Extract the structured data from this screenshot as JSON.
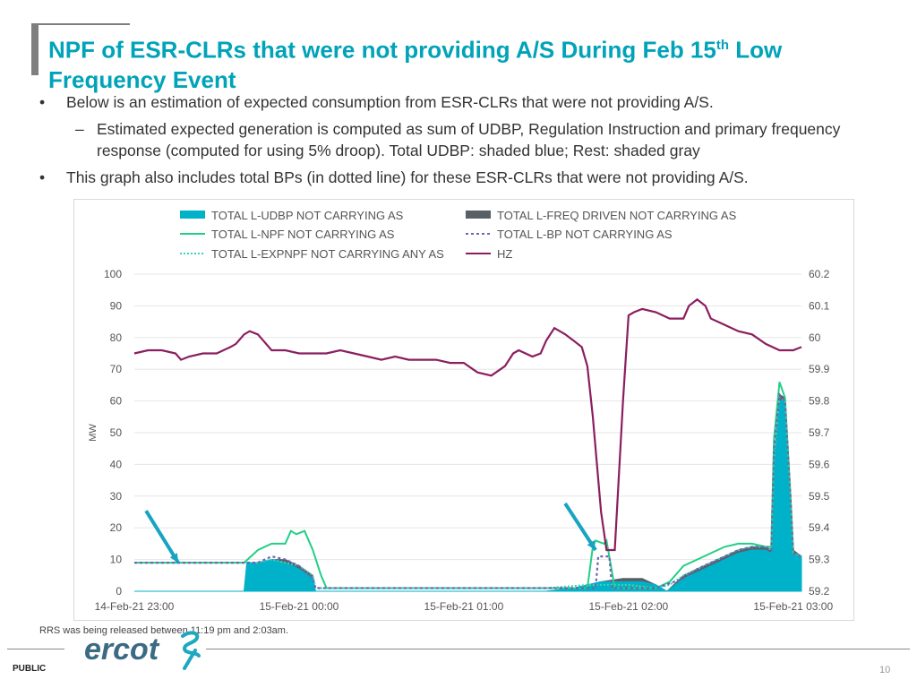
{
  "slide": {
    "title_main": "NPF of ESR-CLRs that were not providing A/S During Feb 15",
    "title_sup": "th",
    "title_rest": " Low Frequency Event",
    "bullet1": "Below is an estimation of expected consumption from ESR-CLRs that were not providing A/S.",
    "sub_bullet": "Estimated expected generation is computed as sum of UDBP, Regulation Instruction and primary frequency response (computed for using 5% droop). Total UDBP: shaded blue; Rest: shaded gray",
    "bullet2": "This graph also includes total BPs (in dotted line) for these ESR-CLRs that were not providing A/S.",
    "footnote": "RRS was being released between 11:19 pm and 2:03am.",
    "logo_text": "ercot",
    "classification": "PUBLIC",
    "page_number": "10"
  },
  "colors": {
    "title": "#00a3b8",
    "udbp": "#00b2c9",
    "freq_driven": "#595f66",
    "npf": "#22cf86",
    "bp": "#7261b8",
    "expnpf": "#3ad6b4",
    "hz": "#8b1e5f",
    "arrow": "#17a3c2"
  },
  "chart_data": {
    "type": "area",
    "ylabel": "MW",
    "ylim": [
      0,
      100
    ],
    "y_ticks": [
      "100",
      "90",
      "80",
      "70",
      "60",
      "50",
      "40",
      "30",
      "20",
      "10",
      "0"
    ],
    "y2lim": [
      59.2,
      60.2
    ],
    "y2_ticks": [
      "60.2",
      "60.1",
      "60",
      "59.9",
      "59.8",
      "59.7",
      "59.6",
      "59.5",
      "59.4",
      "59.3",
      "59.2"
    ],
    "x_tick_labels": [
      "14-Feb-21 23:00",
      "15-Feb-21 00:00",
      "15-Feb-21 01:00",
      "15-Feb-21 02:00",
      "15-Feb-21 03:00"
    ],
    "x_tick_values": [
      "23:00",
      "00:00",
      "01:00",
      "02:00",
      "03:00"
    ],
    "legend": [
      {
        "key": "udbp",
        "label": "TOTAL L-UDBP NOT CARRYING  AS"
      },
      {
        "key": "freq_driven",
        "label": "TOTAL L-FREQ DRIVEN NOT CARRYING AS"
      },
      {
        "key": "npf",
        "label": "TOTAL L-NPF NOT CARRYING  AS"
      },
      {
        "key": "bp",
        "label": "TOTAL L-BP NOT CARRYING  AS"
      },
      {
        "key": "expnpf",
        "label": "TOTAL L-EXPNPF NOT CARRYING ANY  AS"
      },
      {
        "key": "hz",
        "label": "HZ"
      }
    ],
    "series": [
      {
        "key": "udbp",
        "name": "TOTAL L-UDBP NOT CARRYING  AS",
        "x": [
          "23:00",
          "23:40",
          "23:41",
          "23:45",
          "23:50",
          "23:55",
          "00:00",
          "00:05",
          "00:06",
          "01:30",
          "01:40",
          "01:50",
          "01:58",
          "02:00",
          "02:05",
          "02:10",
          "02:14",
          "02:20",
          "02:25",
          "02:30",
          "02:35",
          "02:40",
          "02:45",
          "02:50",
          "02:52",
          "02:53",
          "02:55",
          "02:57",
          "02:59",
          "03:00",
          "03:03"
        ],
        "y": [
          0,
          0,
          9,
          9,
          10,
          9,
          7,
          4,
          0,
          0,
          1,
          3,
          3,
          3,
          3,
          2,
          0,
          4,
          6,
          8,
          10,
          12,
          13,
          13,
          12,
          40,
          60,
          60,
          30,
          12,
          11
        ]
      },
      {
        "key": "freq_driven",
        "name": "TOTAL L-FREQ DRIVEN NOT CARRYING AS",
        "x": [
          "23:00",
          "23:40",
          "23:41",
          "23:45",
          "23:50",
          "23:55",
          "00:00",
          "00:05",
          "00:06",
          "01:30",
          "01:40",
          "01:50",
          "01:58",
          "02:00",
          "02:05",
          "02:10",
          "02:14",
          "02:20",
          "02:25",
          "02:30",
          "02:35",
          "02:40",
          "02:45",
          "02:50",
          "02:52",
          "02:53",
          "02:55",
          "02:57",
          "02:59",
          "03:00",
          "03:03"
        ],
        "y": [
          0,
          0,
          9,
          9,
          10,
          10,
          8,
          5,
          0,
          0,
          1,
          3,
          4,
          4,
          4,
          2,
          0,
          5,
          7,
          9,
          11,
          13,
          14,
          14,
          13,
          41,
          62,
          61,
          31,
          13,
          11
        ]
      },
      {
        "key": "npf",
        "name": "TOTAL L-NPF NOT CARRYING  AS",
        "x": [
          "23:00",
          "23:40",
          "23:45",
          "23:50",
          "23:55",
          "23:57",
          "23:59",
          "00:02",
          "00:05",
          "00:08",
          "00:10",
          "01:30",
          "01:45",
          "01:47",
          "01:48",
          "01:51",
          "01:52",
          "01:55",
          "02:00",
          "02:05",
          "02:10",
          "02:15",
          "02:20",
          "02:25",
          "02:30",
          "02:35",
          "02:40",
          "02:45",
          "02:50",
          "02:52",
          "02:53",
          "02:55",
          "02:57",
          "02:59",
          "03:00",
          "03:03"
        ],
        "y": [
          9,
          9,
          13,
          15,
          15,
          19,
          18,
          19,
          13,
          5,
          1,
          1,
          1,
          14,
          16,
          15,
          16,
          1,
          1,
          1,
          1,
          3,
          8,
          10,
          12,
          14,
          15,
          15,
          14,
          14,
          48,
          66,
          61,
          30,
          12,
          11
        ]
      },
      {
        "key": "bp",
        "name": "TOTAL L-BP NOT CARRYING  AS",
        "x": [
          "23:00",
          "23:40",
          "23:45",
          "23:50",
          "23:55",
          "00:00",
          "00:05",
          "00:06",
          "01:30",
          "01:48",
          "01:49",
          "01:53",
          "01:54",
          "02:00",
          "02:10",
          "02:20",
          "02:25",
          "02:30",
          "02:35",
          "02:40",
          "02:45",
          "02:50",
          "02:52",
          "02:53",
          "02:55",
          "02:57",
          "02:59",
          "03:00",
          "03:03"
        ],
        "y": [
          9,
          9,
          9,
          11,
          10,
          8,
          4,
          1,
          1,
          1,
          11,
          11,
          1,
          1,
          1,
          4,
          7,
          9,
          11,
          13,
          14,
          14,
          13,
          45,
          62,
          60,
          30,
          12,
          11
        ]
      },
      {
        "key": "expnpf",
        "name": "TOTAL L-EXPNPF NOT CARRYING ANY  AS",
        "x": [
          "23:00",
          "23:40",
          "23:45",
          "23:50",
          "23:55",
          "00:00",
          "00:05",
          "00:06",
          "01:30",
          "01:45",
          "02:00",
          "02:10",
          "02:15",
          "02:20",
          "02:25",
          "02:30",
          "02:35",
          "02:40",
          "02:45",
          "02:50",
          "02:52",
          "02:53",
          "02:55",
          "02:57",
          "02:59",
          "03:00",
          "03:03"
        ],
        "y": [
          9,
          9,
          9,
          10,
          9,
          8,
          5,
          1,
          1,
          2,
          2,
          1,
          2,
          5,
          7,
          9,
          11,
          13,
          14,
          14,
          13,
          42,
          61,
          60,
          30,
          12,
          11
        ]
      },
      {
        "key": "hz",
        "name": "HZ",
        "axis": "right",
        "x": [
          "23:00",
          "23:05",
          "23:10",
          "23:15",
          "23:17",
          "23:20",
          "23:25",
          "23:30",
          "23:35",
          "23:37",
          "23:40",
          "23:42",
          "23:45",
          "23:47",
          "23:50",
          "23:55",
          "00:00",
          "00:05",
          "00:10",
          "00:15",
          "00:20",
          "00:25",
          "00:30",
          "00:35",
          "00:40",
          "00:45",
          "00:50",
          "00:55",
          "01:00",
          "01:05",
          "01:10",
          "01:15",
          "01:18",
          "01:20",
          "01:25",
          "01:28",
          "01:30",
          "01:33",
          "01:37",
          "01:40",
          "01:43",
          "01:45",
          "01:47",
          "01:50",
          "01:52",
          "01:55",
          "01:58",
          "02:00",
          "02:02",
          "02:05",
          "02:10",
          "02:15",
          "02:20",
          "02:22",
          "02:25",
          "02:28",
          "02:30",
          "02:35",
          "02:40",
          "02:45",
          "02:50",
          "02:55",
          "03:00",
          "03:03"
        ],
        "y": [
          59.95,
          59.96,
          59.96,
          59.95,
          59.93,
          59.94,
          59.95,
          59.95,
          59.97,
          59.98,
          60.01,
          60.02,
          60.01,
          59.99,
          59.96,
          59.96,
          59.95,
          59.95,
          59.95,
          59.96,
          59.95,
          59.94,
          59.93,
          59.94,
          59.93,
          59.93,
          59.93,
          59.92,
          59.92,
          59.89,
          59.88,
          59.91,
          59.95,
          59.96,
          59.94,
          59.95,
          59.99,
          60.03,
          60.01,
          59.99,
          59.97,
          59.91,
          59.75,
          59.45,
          59.33,
          59.33,
          59.8,
          60.07,
          60.08,
          60.09,
          60.08,
          60.06,
          60.06,
          60.1,
          60.12,
          60.1,
          60.06,
          60.04,
          60.02,
          60.01,
          59.98,
          59.96,
          59.96,
          59.97
        ]
      }
    ],
    "annotations": [
      {
        "type": "arrow",
        "target_x": "23:16",
        "target_y": 9
      },
      {
        "type": "arrow",
        "target_x": "01:48",
        "target_y": 13
      }
    ],
    "grid": true,
    "legend_position": "top"
  }
}
